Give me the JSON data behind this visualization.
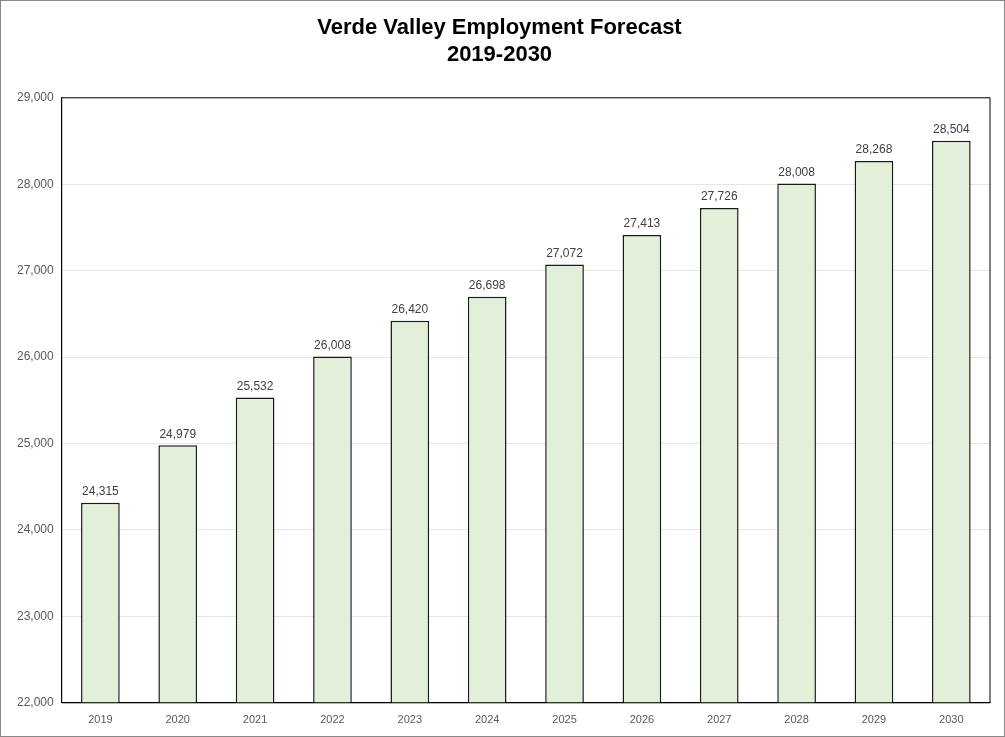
{
  "chart_data": {
    "type": "bar",
    "title": "Verde Valley Employment Forecast",
    "subtitle": "2019-2030",
    "categories": [
      "2019",
      "2020",
      "2021",
      "2022",
      "2023",
      "2024",
      "2025",
      "2026",
      "2027",
      "2028",
      "2029",
      "2030"
    ],
    "values": [
      24315,
      24979,
      25532,
      26008,
      26420,
      26698,
      27072,
      27413,
      27726,
      28008,
      28268,
      28504
    ],
    "value_labels": [
      "24,315",
      "24,979",
      "25,532",
      "26,008",
      "26,420",
      "26,698",
      "27,072",
      "27,413",
      "27,726",
      "28,008",
      "28,268",
      "28,504"
    ],
    "color": "#e2efd9",
    "ylim": [
      22000,
      29000
    ],
    "yticks": [
      {
        "value": 22000,
        "label": "22,000"
      },
      {
        "value": 23000,
        "label": "23,000"
      },
      {
        "value": 24000,
        "label": "24,000"
      },
      {
        "value": 25000,
        "label": "25,000"
      },
      {
        "value": 26000,
        "label": "26,000"
      },
      {
        "value": 27000,
        "label": "27,000"
      },
      {
        "value": 28000,
        "label": "28,000"
      },
      {
        "value": 29000,
        "label": "29,000"
      }
    ],
    "grid": "y",
    "legend": false
  }
}
